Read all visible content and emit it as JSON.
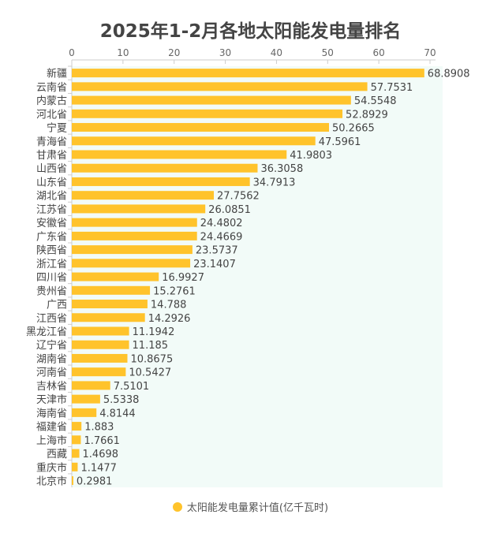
{
  "chart_data": {
    "type": "bar",
    "orientation": "horizontal",
    "title": "2025年1-2月各地太阳能发电量排名",
    "categories": [
      "新疆",
      "云南省",
      "内蒙古",
      "河北省",
      "宁夏",
      "青海省",
      "甘肃省",
      "山西省",
      "山东省",
      "湖北省",
      "江苏省",
      "安徽省",
      "广东省",
      "陕西省",
      "浙江省",
      "四川省",
      "贵州省",
      "广西",
      "江西省",
      "黑龙江省",
      "辽宁省",
      "湖南省",
      "河南省",
      "吉林省",
      "天津市",
      "海南省",
      "福建省",
      "上海市",
      "西藏",
      "重庆市",
      "北京市"
    ],
    "series": [
      {
        "name": "太阳能发电量累计值(亿千瓦时)",
        "values": [
          68.8908,
          57.7531,
          54.5548,
          52.8929,
          50.2665,
          47.5961,
          41.9803,
          36.3058,
          34.7913,
          27.7562,
          26.0851,
          24.4802,
          24.4669,
          23.5737,
          23.1407,
          16.9927,
          15.2761,
          14.788,
          14.2926,
          11.1942,
          11.185,
          10.8675,
          10.5427,
          7.5101,
          5.5338,
          4.8144,
          1.883,
          1.7661,
          1.4698,
          1.1477,
          0.2981
        ],
        "labels": [
          "68.8908",
          "57.7531",
          "54.5548",
          "52.8929",
          "50.2665",
          "47.5961",
          "41.9803",
          "36.3058",
          "34.7913",
          "27.7562",
          "26.0851",
          "24.4802",
          "24.4669",
          "23.5737",
          "23.1407",
          "16.9927",
          "15.2761",
          "14.788",
          "14.2926",
          "11.1942",
          "11.185",
          "10.8675",
          "10.5427",
          "7.5101",
          "5.5338",
          "4.8144",
          "1.883",
          "1.7661",
          "1.4698",
          "1.1477",
          "0.2981"
        ]
      }
    ],
    "xlim": [
      0,
      70
    ],
    "xticks": [
      "0",
      "10",
      "20",
      "30",
      "40",
      "50",
      "60",
      "70"
    ],
    "x_axis_position": "top",
    "grid": false,
    "legend_position": "bottom",
    "colors": {
      "bar": "#FFC32B",
      "plot_bg": "#F2FBF8",
      "text": "#444444"
    }
  }
}
